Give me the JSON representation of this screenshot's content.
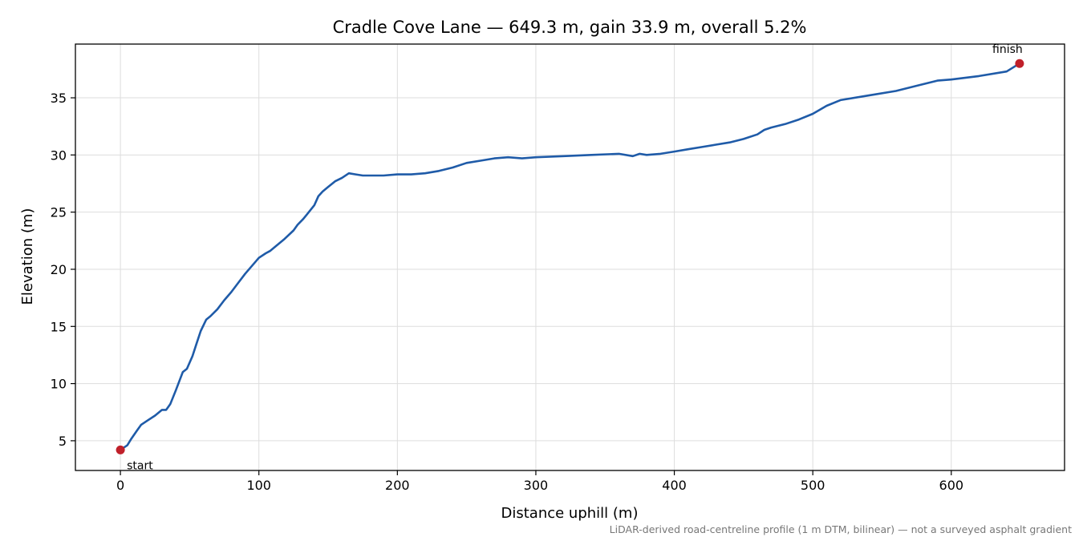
{
  "chart_data": {
    "type": "line",
    "title": "Cradle Cove Lane — 649.3 m, gain 33.9 m, overall 5.2%",
    "xlabel": "Distance uphill (m)",
    "ylabel": "Elevation (m)",
    "xlim": [
      -32.5,
      681.8
    ],
    "ylim": [
      2.4,
      39.7
    ],
    "xticks": [
      0,
      100,
      200,
      300,
      400,
      500,
      600
    ],
    "yticks": [
      5,
      10,
      15,
      20,
      25,
      30,
      35
    ],
    "grid": true,
    "line_color": "#1f5ba8",
    "marker_color": "#c0202a",
    "caption": "LiDAR-derived road-centreline profile (1 m DTM, bilinear) — not a surveyed asphalt gradient",
    "series": [
      {
        "x": [
          0,
          5,
          8,
          12,
          15,
          20,
          25,
          30,
          33,
          36,
          40,
          45,
          48,
          52,
          55,
          58,
          62,
          65,
          70,
          75,
          80,
          85,
          90,
          95,
          100,
          105,
          108,
          112,
          118,
          125,
          128,
          132,
          136,
          140,
          143,
          146,
          150,
          155,
          160,
          165,
          170,
          175,
          180,
          190,
          200,
          210,
          220,
          230,
          240,
          250,
          260,
          270,
          280,
          290,
          300,
          320,
          340,
          360,
          370,
          375,
          380,
          390,
          400,
          410,
          420,
          430,
          440,
          450,
          460,
          465,
          470,
          480,
          490,
          500,
          510,
          520,
          540,
          560,
          580,
          590,
          600,
          620,
          640,
          649.3
        ],
        "y": [
          4.2,
          4.6,
          5.2,
          5.9,
          6.4,
          6.8,
          7.2,
          7.7,
          7.7,
          8.2,
          9.4,
          11.0,
          11.3,
          12.4,
          13.5,
          14.6,
          15.6,
          15.9,
          16.5,
          17.3,
          18.0,
          18.8,
          19.6,
          20.3,
          21.0,
          21.4,
          21.6,
          22.0,
          22.6,
          23.4,
          23.9,
          24.4,
          25.0,
          25.6,
          26.4,
          26.8,
          27.2,
          27.7,
          28.0,
          28.4,
          28.3,
          28.2,
          28.2,
          28.2,
          28.3,
          28.3,
          28.4,
          28.6,
          28.9,
          29.3,
          29.5,
          29.7,
          29.8,
          29.7,
          29.8,
          29.9,
          30.0,
          30.1,
          29.9,
          30.1,
          30.0,
          30.1,
          30.3,
          30.5,
          30.7,
          30.9,
          31.1,
          31.4,
          31.8,
          32.2,
          32.4,
          32.7,
          33.1,
          33.6,
          34.3,
          34.8,
          35.2,
          35.6,
          36.2,
          36.5,
          36.6,
          36.9,
          37.3,
          38.0
        ]
      }
    ],
    "annotations": [
      {
        "text": "start",
        "x": 0,
        "y": 4.2
      },
      {
        "text": "finish",
        "x": 649.3,
        "y": 38.0
      }
    ]
  }
}
